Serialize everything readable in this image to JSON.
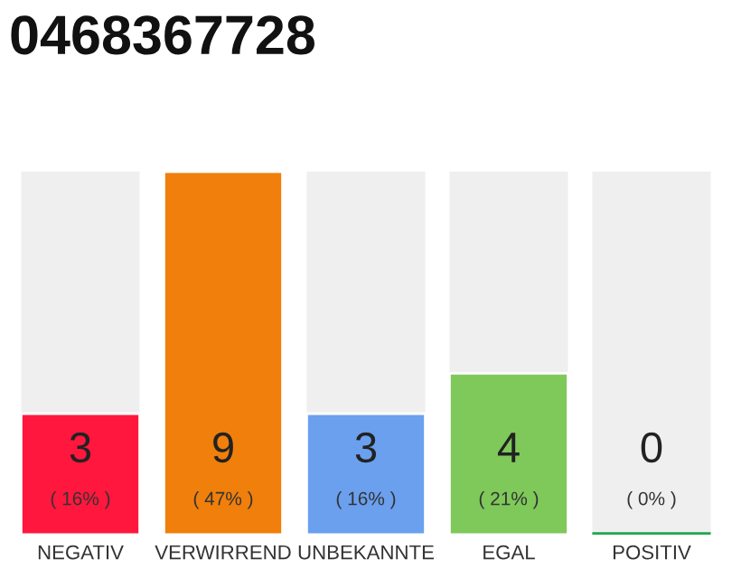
{
  "chart_data": {
    "type": "bar",
    "title": "0468367728",
    "categories": [
      "NEGATIV",
      "VERWIRREND",
      "UNBEKANNTE",
      "EGAL",
      "POSITIV"
    ],
    "values": [
      3,
      9,
      3,
      4,
      0
    ],
    "colors": [
      "#ff173d",
      "#f07f0b",
      "#6aa0ee",
      "#7ec95a",
      "#1fa84a"
    ],
    "value_labels": [
      "3",
      "9",
      "3",
      "4",
      "0"
    ],
    "annotations": [
      "( 16% )",
      "( 47% )",
      "( 16% )",
      "( 21% )",
      "( 0% )"
    ],
    "tick_labels": "x"
  }
}
